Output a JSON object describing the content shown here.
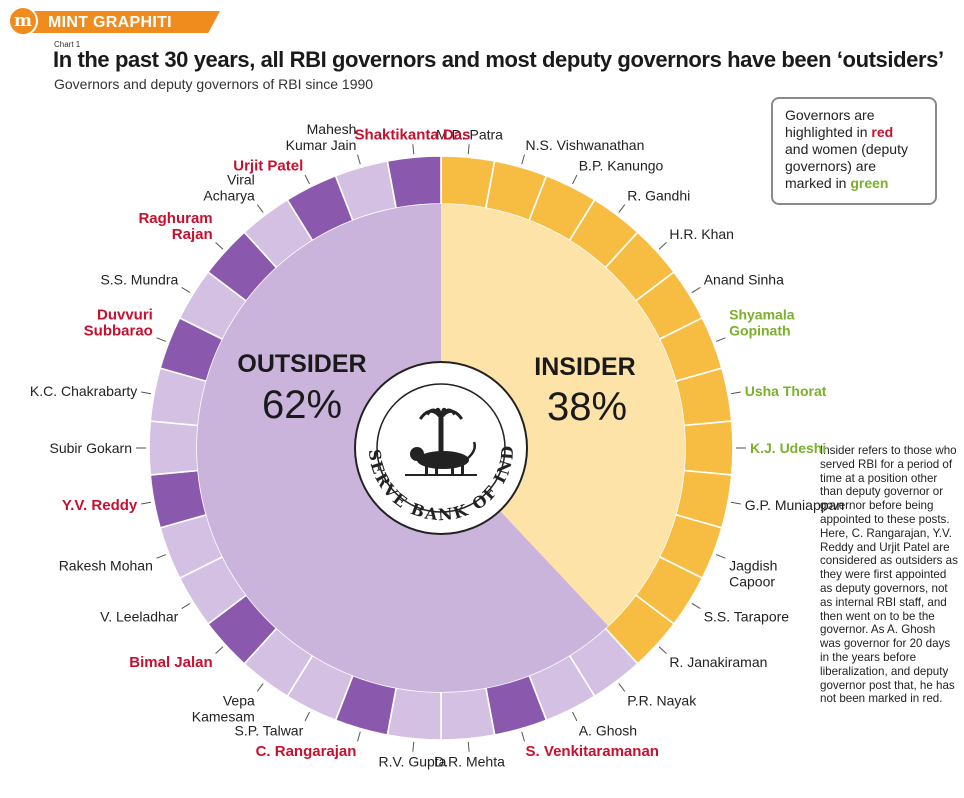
{
  "brand": {
    "logo_letter": "m",
    "name": "MINT GRAPHITI"
  },
  "chart_label": "Chart 1",
  "title": "In the past 30 years, all RBI governors and most deputy governors have been ‘outsiders’",
  "subtitle": "Governors and deputy governors of RBI since 1990",
  "legend": {
    "line1": "Governors are",
    "line2_pre": "highlighted in ",
    "line2_red": "red",
    "line3": "and women (deputy",
    "line4": "governors) are",
    "line5_pre": "marked in ",
    "line5_green": "green"
  },
  "note": "Insider refers to those who served RBI for a period of time at a position other than deputy governor or governor before being appointed to these posts. Here, C. Rangarajan, Y.V. Reddy and Urjit Patel are considered as outsiders as they were first appointed as deputy governors, not as internal RBI staff, and then went on to be the governor. As A. Ghosh was governor for 20 days in the years before liberalization, and deputy governor post that, he has not been marked in red.",
  "seal_text": "RESERVE BANK OF INDIA",
  "colors": {
    "insider_fill": "#fde3a7",
    "insider_ring": "#f7bd42",
    "outsider_fill": "#cbb4dc",
    "outsider_ring": "#d4c0e3",
    "governor_ring": "#8a59ad",
    "governor_text": "#c8102e",
    "woman_text": "#7ab02b"
  },
  "chart_data": {
    "type": "pie",
    "title": "In the past 30 years, all RBI governors and most deputy governors have been ‘outsiders’",
    "categories": [
      {
        "name": "OUTSIDER",
        "value": 62,
        "label": "62%"
      },
      {
        "name": "INSIDER",
        "value": 38,
        "label": "38%"
      }
    ],
    "people": [
      {
        "name": "M.D. Patra",
        "group": "insider",
        "role": "deputy"
      },
      {
        "name": "N.S. Vishwanathan",
        "group": "insider",
        "role": "deputy"
      },
      {
        "name": "B.P. Kanungo",
        "group": "insider",
        "role": "deputy"
      },
      {
        "name": "R. Gandhi",
        "group": "insider",
        "role": "deputy"
      },
      {
        "name": "H.R. Khan",
        "group": "insider",
        "role": "deputy"
      },
      {
        "name": "Anand Sinha",
        "group": "insider",
        "role": "deputy"
      },
      {
        "name": "Shyamala Gopinath",
        "group": "insider",
        "role": "deputy",
        "woman": true
      },
      {
        "name": "Usha Thorat",
        "group": "insider",
        "role": "deputy",
        "woman": true
      },
      {
        "name": "K.J. Udeshi",
        "group": "insider",
        "role": "deputy",
        "woman": true
      },
      {
        "name": "G.P. Muniappan",
        "group": "insider",
        "role": "deputy"
      },
      {
        "name": "Jagdish Capoor",
        "group": "insider",
        "role": "deputy"
      },
      {
        "name": "S.S. Tarapore",
        "group": "insider",
        "role": "deputy"
      },
      {
        "name": "R. Janakiraman",
        "group": "insider",
        "role": "deputy"
      },
      {
        "name": "P.R. Nayak",
        "group": "outsider",
        "role": "deputy"
      },
      {
        "name": "A. Ghosh",
        "group": "outsider",
        "role": "deputy"
      },
      {
        "name": "S. Venkitaramanan",
        "group": "outsider",
        "role": "governor"
      },
      {
        "name": "D.R. Mehta",
        "group": "outsider",
        "role": "deputy"
      },
      {
        "name": "R.V. Gupta",
        "group": "outsider",
        "role": "deputy"
      },
      {
        "name": "C. Rangarajan",
        "group": "outsider",
        "role": "governor"
      },
      {
        "name": "S.P. Talwar",
        "group": "outsider",
        "role": "deputy"
      },
      {
        "name": "Vepa Kamesam",
        "group": "outsider",
        "role": "deputy"
      },
      {
        "name": "Bimal Jalan",
        "group": "outsider",
        "role": "governor"
      },
      {
        "name": "V. Leeladhar",
        "group": "outsider",
        "role": "deputy"
      },
      {
        "name": "Rakesh Mohan",
        "group": "outsider",
        "role": "deputy"
      },
      {
        "name": "Y.V. Reddy",
        "group": "outsider",
        "role": "governor"
      },
      {
        "name": "Subir Gokarn",
        "group": "outsider",
        "role": "deputy"
      },
      {
        "name": "K.C. Chakrabarty",
        "group": "outsider",
        "role": "deputy"
      },
      {
        "name": "Duvvuri Subbarao",
        "group": "outsider",
        "role": "governor"
      },
      {
        "name": "S.S. Mundra",
        "group": "outsider",
        "role": "deputy"
      },
      {
        "name": "Raghuram Rajan",
        "group": "outsider",
        "role": "governor"
      },
      {
        "name": "Viral Acharya",
        "group": "outsider",
        "role": "deputy"
      },
      {
        "name": "Urjit Patel",
        "group": "outsider",
        "role": "governor"
      },
      {
        "name": "Mahesh Kumar Jain",
        "group": "outsider",
        "role": "deputy"
      },
      {
        "name": "Shaktikanta Das",
        "group": "outsider",
        "role": "governor"
      }
    ]
  }
}
